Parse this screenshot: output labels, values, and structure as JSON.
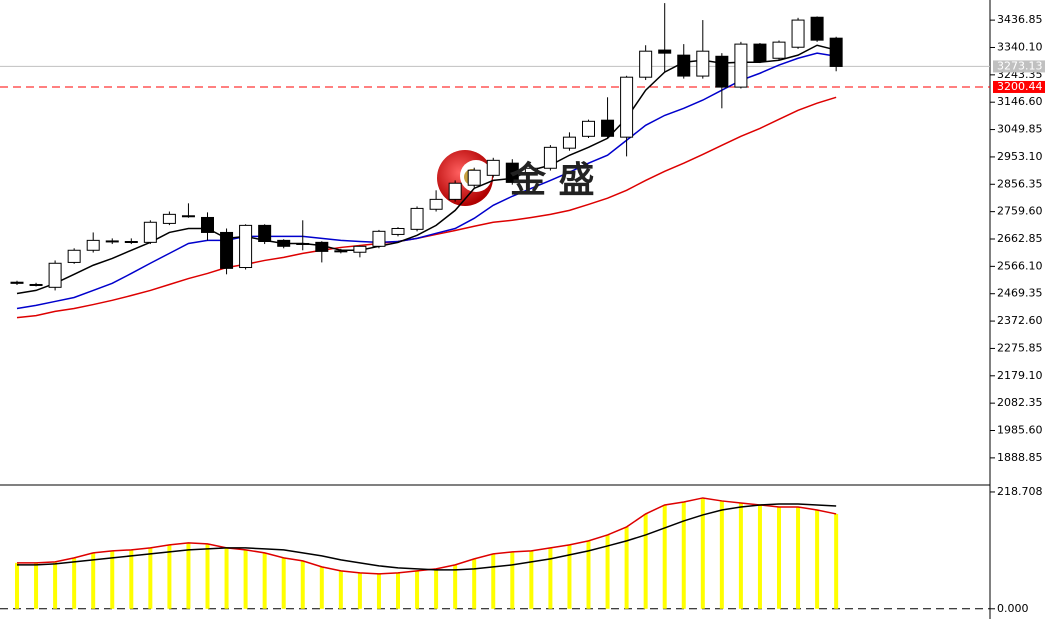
{
  "chart_data": [
    {
      "type": "candlestick",
      "watermark": "金 盛",
      "open": [
        2510,
        2502,
        2492,
        2580,
        2623,
        2654,
        2652,
        2651,
        2718,
        2745,
        2739,
        2686,
        2562,
        2711,
        2658,
        2645,
        2651,
        2621,
        2616,
        2637,
        2679,
        2697,
        2768,
        2803,
        2853,
        2888,
        2931,
        2895,
        2913,
        2984,
        3026,
        3083,
        3023,
        3235,
        3331,
        3313,
        3239,
        3309,
        3200,
        3352,
        3302,
        3341,
        3447,
        3373
      ],
      "high": [
        2515,
        2508,
        2587,
        2630,
        2686,
        2665,
        2665,
        2729,
        2760,
        2789,
        2757,
        2700,
        2715,
        2715,
        2662,
        2729,
        2655,
        2628,
        2640,
        2695,
        2705,
        2778,
        2835,
        2870,
        2915,
        2950,
        2945,
        2920,
        2995,
        3040,
        3085,
        3164,
        3240,
        3348,
        3497,
        3352,
        3437,
        3320,
        3360,
        3356,
        3365,
        3445,
        3450,
        3378
      ],
      "low": [
        2500,
        2495,
        2481,
        2575,
        2615,
        2645,
        2645,
        2645,
        2712,
        2738,
        2658,
        2538,
        2555,
        2645,
        2630,
        2623,
        2580,
        2612,
        2598,
        2630,
        2672,
        2690,
        2760,
        2795,
        2845,
        2880,
        2855,
        2890,
        2905,
        2975,
        3020,
        3020,
        2955,
        3225,
        3253,
        3230,
        3230,
        3125,
        3195,
        3285,
        3295,
        3335,
        3360,
        3256
      ],
      "close": [
        2506,
        2499,
        2577,
        2623,
        2658,
        2656,
        2654,
        2722,
        2750,
        2743,
        2686,
        2559,
        2711,
        2654,
        2637,
        2647,
        2619,
        2619,
        2637,
        2690,
        2700,
        2771,
        2803,
        2860,
        2906,
        2941,
        2863,
        2913,
        2987,
        3023,
        3079,
        3026,
        3235,
        3327,
        3320,
        3239,
        3327,
        3200,
        3352,
        3292,
        3359,
        3437,
        3366,
        3273
      ],
      "up_color": "#ffffff",
      "down_color": "#000000",
      "overlays": [
        {
          "color": "#000000",
          "values": [
            2470,
            2481,
            2506,
            2538,
            2570,
            2594,
            2623,
            2651,
            2686,
            2700,
            2700,
            2665,
            2672,
            2658,
            2647,
            2647,
            2640,
            2623,
            2623,
            2637,
            2651,
            2676,
            2711,
            2764,
            2842,
            2870,
            2877,
            2906,
            2924,
            2959,
            2987,
            3019,
            3090,
            3189,
            3253,
            3288,
            3295,
            3285,
            3288,
            3288,
            3295,
            3313,
            3348,
            3331
          ]
        },
        {
          "color": "#0000cc",
          "values": [
            2417,
            2428,
            2442,
            2456,
            2481,
            2506,
            2541,
            2577,
            2612,
            2647,
            2658,
            2658,
            2672,
            2672,
            2672,
            2672,
            2665,
            2658,
            2654,
            2651,
            2654,
            2665,
            2683,
            2700,
            2736,
            2782,
            2814,
            2842,
            2870,
            2899,
            2931,
            2959,
            3012,
            3065,
            3100,
            3125,
            3154,
            3189,
            3224,
            3249,
            3278,
            3302,
            3320,
            3309
          ]
        },
        {
          "color": "#dd0000",
          "values": [
            2385,
            2392,
            2407,
            2417,
            2431,
            2446,
            2463,
            2481,
            2502,
            2523,
            2541,
            2562,
            2573,
            2587,
            2598,
            2612,
            2623,
            2633,
            2640,
            2647,
            2654,
            2665,
            2679,
            2693,
            2708,
            2722,
            2729,
            2739,
            2750,
            2764,
            2785,
            2807,
            2835,
            2870,
            2902,
            2931,
            2962,
            2994,
            3026,
            3054,
            3086,
            3118,
            3143,
            3164
          ]
        }
      ],
      "price_lines": [
        {
          "value": 3273.13,
          "color": "#c0c0c0"
        },
        {
          "value": 3200.44,
          "color": "#ff0000"
        }
      ],
      "ylim": [
        1800,
        3508
      ],
      "yticks": [
        3436.85,
        {
          "value": 3340.1,
          "label": "3340.10"
        },
        3243.35,
        {
          "value": 3146.6,
          "label": "3146.60"
        },
        3049.85,
        {
          "value": 2953.1,
          "label": "2953.10"
        },
        2856.35,
        {
          "value": 2759.6,
          "label": "2759.60"
        },
        2662.85,
        {
          "value": 2566.1,
          "label": "2566.10"
        },
        2469.35,
        {
          "value": 2372.6,
          "label": "2372.60"
        },
        2275.85,
        {
          "value": 2179.1,
          "label": "2179.10"
        },
        2082.35,
        {
          "value": 1985.6,
          "label": "1985.60"
        },
        1888.85
      ]
    },
    {
      "type": "bar",
      "color": "#ffff00",
      "line_color": "#dd0000",
      "values": [
        86.0,
        86.0,
        87.8,
        95.3,
        104.7,
        108.4,
        110.3,
        114.0,
        119.6,
        123.4,
        121.5,
        114.0,
        110.3,
        104.7,
        95.3,
        89.7,
        78.5,
        71.0,
        67.3,
        65.4,
        67.3,
        71.0,
        74.8,
        82.2,
        93.5,
        102.8,
        106.5,
        108.4,
        114.0,
        119.6,
        127.1,
        138.3,
        153.3,
        177.6,
        194.4,
        200.0,
        207.5,
        201.9,
        198.1,
        194.4,
        190.6,
        190.6,
        185.0,
        177.6
      ],
      "overlays": [
        {
          "color": "#000000",
          "values": [
            82.2,
            82.2,
            84.1,
            87.8,
            91.6,
            95.3,
            99.1,
            102.8,
            106.5,
            110.3,
            112.1,
            114.0,
            114.0,
            112.1,
            110.3,
            104.7,
            99.1,
            91.6,
            86.0,
            80.4,
            76.6,
            74.8,
            72.9,
            72.9,
            74.8,
            78.5,
            82.2,
            87.8,
            93.5,
            100.9,
            108.4,
            117.7,
            127.1,
            138.3,
            151.4,
            164.5,
            175.7,
            185.0,
            190.6,
            194.4,
            196.2,
            196.2,
            194.4,
            192.5
          ]
        }
      ],
      "ylim": [
        -6,
        228
      ],
      "yticks": [
        218.708,
        {
          "value": 0,
          "label": "0.000"
        }
      ]
    }
  ]
}
